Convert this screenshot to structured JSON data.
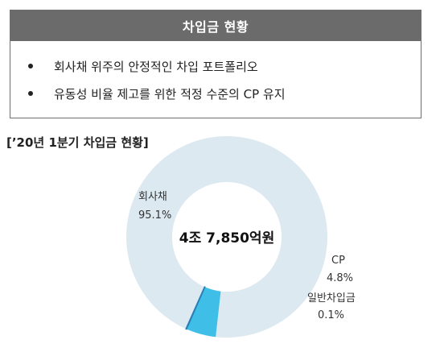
{
  "summary": {
    "title": "차입금 현황",
    "bullets": [
      "회사채 위주의 안정적인 차입 포트폴리오",
      "유동성 비율 제고를 위한 적정 수준의 CP 유지"
    ]
  },
  "chart_data": {
    "type": "pie",
    "title": "[’20년 1분기 차입금 현황]",
    "center_label": "4조 7,850억원",
    "slices": [
      {
        "name": "회사채",
        "percent_label": "95.1%",
        "value": 95.1,
        "color": "#dde9f1"
      },
      {
        "name": "CP",
        "percent_label": "4.8%",
        "value": 4.8,
        "color": "#3fbfe7"
      },
      {
        "name": "일반차입금",
        "percent_label": "0.1%",
        "value": 0.1,
        "color": "#2a7fb3"
      }
    ]
  }
}
